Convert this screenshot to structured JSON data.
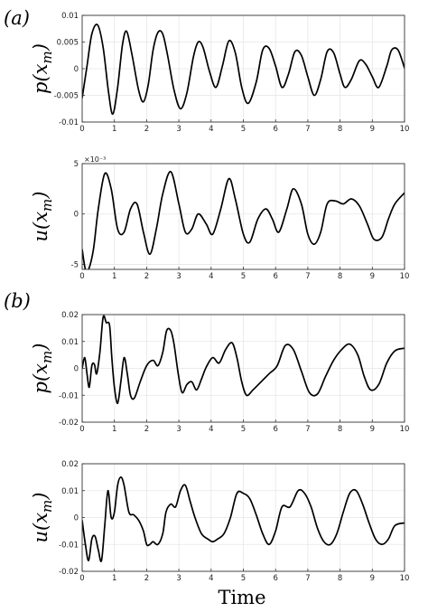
{
  "panel_labels": [
    "(a)",
    "(b)"
  ],
  "xlabel": "Time",
  "chart_data": [
    {
      "type": "line",
      "panel": "(a)",
      "ylabel": "p(x_m)",
      "ylabel_display": "p(x",
      "ylabel_sub": "m",
      "xlim": [
        0,
        10
      ],
      "ylim": [
        -0.01,
        0.01
      ],
      "xticks": [
        "0",
        "1",
        "2",
        "3",
        "4",
        "5",
        "6",
        "7",
        "8",
        "9",
        "10"
      ],
      "yticks": [
        {
          "v": 0.01,
          "label": "0.01"
        },
        {
          "v": 0.005,
          "label": "0.005"
        },
        {
          "v": 0,
          "label": "0"
        },
        {
          "v": -0.005,
          "label": "-0.005"
        },
        {
          "v": -0.01,
          "label": "-0.01"
        }
      ],
      "grid": true,
      "x": [
        0,
        0.15,
        0.3,
        0.48,
        0.65,
        0.82,
        0.95,
        1.1,
        1.25,
        1.38,
        1.55,
        1.75,
        1.9,
        2.05,
        2.2,
        2.35,
        2.5,
        2.65,
        2.85,
        3.05,
        3.25,
        3.45,
        3.6,
        3.75,
        3.95,
        4.15,
        4.35,
        4.55,
        4.75,
        4.95,
        5.15,
        5.4,
        5.6,
        5.8,
        6.0,
        6.2,
        6.4,
        6.6,
        6.8,
        7.0,
        7.2,
        7.4,
        7.6,
        7.8,
        8.0,
        8.15,
        8.35,
        8.6,
        8.8,
        9.0,
        9.2,
        9.45,
        9.6,
        9.8,
        10.0
      ],
      "y": [
        -0.0055,
        0.0005,
        0.0065,
        0.0082,
        0.004,
        -0.0045,
        -0.0085,
        -0.0035,
        0.0045,
        0.007,
        0.0025,
        -0.004,
        -0.0062,
        -0.003,
        0.0035,
        0.0068,
        0.0065,
        0.0025,
        -0.004,
        -0.0075,
        -0.0045,
        0.0022,
        0.005,
        0.004,
        -0.0005,
        -0.0035,
        0.0005,
        0.0052,
        0.003,
        -0.0035,
        -0.0065,
        -0.0025,
        0.0035,
        0.0038,
        0.0005,
        -0.0035,
        -0.001,
        0.0032,
        0.0025,
        -0.0015,
        -0.005,
        -0.002,
        0.0032,
        0.003,
        -0.001,
        -0.0035,
        -0.002,
        0.0015,
        0.0008,
        -0.0015,
        -0.0035,
        0.0005,
        0.0035,
        0.0035,
        0.0001
      ]
    },
    {
      "type": "line",
      "panel": "(a)",
      "ylabel": "u(x_m)",
      "ylabel_display": "u(x",
      "ylabel_sub": "m",
      "exponent_label": "×10⁻³",
      "xlim": [
        0,
        10
      ],
      "ylim": [
        -5.5,
        5
      ],
      "xticks": [
        "0",
        "1",
        "2",
        "3",
        "4",
        "5",
        "6",
        "7",
        "8",
        "9",
        "10"
      ],
      "yticks": [
        {
          "v": 5,
          "label": "5"
        },
        {
          "v": 0,
          "label": "0"
        },
        {
          "v": -5,
          "label": "-5"
        }
      ],
      "grid": true,
      "x": [
        0,
        0.1,
        0.2,
        0.35,
        0.5,
        0.7,
        0.9,
        1.1,
        1.3,
        1.5,
        1.7,
        1.9,
        2.1,
        2.3,
        2.5,
        2.75,
        3.0,
        3.2,
        3.4,
        3.6,
        3.85,
        4.05,
        4.3,
        4.55,
        4.75,
        5.0,
        5.2,
        5.45,
        5.7,
        5.9,
        6.1,
        6.35,
        6.55,
        6.8,
        7.0,
        7.2,
        7.4,
        7.6,
        7.85,
        8.1,
        8.35,
        8.6,
        8.85,
        9.05,
        9.3,
        9.5,
        9.7,
        10.0
      ],
      "y": [
        -3.5,
        -5.5,
        -5.5,
        -3.5,
        0.5,
        4.0,
        2.5,
        -1.5,
        -1.8,
        0.5,
        1.0,
        -1.8,
        -4.0,
        -1.5,
        2.0,
        4.2,
        1.0,
        -1.8,
        -1.5,
        0,
        -1.0,
        -2.0,
        0.5,
        3.5,
        1.5,
        -2.0,
        -2.8,
        -0.5,
        0.5,
        -0.5,
        -1.8,
        0.5,
        2.5,
        1.0,
        -2.0,
        -3.0,
        -1.8,
        1.0,
        1.3,
        1.0,
        1.5,
        0.8,
        -1.0,
        -2.5,
        -2.3,
        -0.5,
        1.0,
        2.1
      ]
    },
    {
      "type": "line",
      "panel": "(b)",
      "ylabel": "p(x_m)",
      "ylabel_display": "p(x",
      "ylabel_sub": "m",
      "xlim": [
        0,
        10
      ],
      "ylim": [
        -0.02,
        0.02
      ],
      "xticks": [
        "0",
        "1",
        "2",
        "3",
        "4",
        "5",
        "6",
        "7",
        "8",
        "9",
        "10"
      ],
      "yticks": [
        {
          "v": 0.02,
          "label": "0.02"
        },
        {
          "v": 0.01,
          "label": "0.01"
        },
        {
          "v": 0,
          "label": "0"
        },
        {
          "v": -0.01,
          "label": "-0.01"
        },
        {
          "v": -0.02,
          "label": "-0.02"
        }
      ],
      "grid": true,
      "x": [
        0,
        0.08,
        0.15,
        0.22,
        0.3,
        0.38,
        0.45,
        0.55,
        0.65,
        0.75,
        0.85,
        0.92,
        1.0,
        1.1,
        1.2,
        1.3,
        1.4,
        1.5,
        1.62,
        1.8,
        2.0,
        2.2,
        2.35,
        2.5,
        2.62,
        2.75,
        2.85,
        2.98,
        3.1,
        3.25,
        3.4,
        3.55,
        3.7,
        3.85,
        4.05,
        4.25,
        4.45,
        4.65,
        4.8,
        4.95,
        5.1,
        5.3,
        5.55,
        5.8,
        6.05,
        6.3,
        6.55,
        6.8,
        7.05,
        7.3,
        7.55,
        7.8,
        8.05,
        8.3,
        8.55,
        8.75,
        8.95,
        9.2,
        9.45,
        9.7,
        10.0
      ],
      "y": [
        0,
        0.004,
        -0.002,
        -0.007,
        0.001,
        0.0015,
        -0.002,
        0.006,
        0.019,
        0.017,
        0.016,
        0.004,
        -0.007,
        -0.013,
        -0.005,
        0.004,
        -0.002,
        -0.01,
        -0.011,
        -0.005,
        0.001,
        0.003,
        0.001,
        0.006,
        0.014,
        0.014,
        0.009,
        -0.002,
        -0.009,
        -0.006,
        -0.005,
        -0.008,
        -0.004,
        0.0005,
        0.004,
        0.002,
        0.007,
        0.0095,
        0.004,
        -0.005,
        -0.01,
        -0.008,
        -0.005,
        -0.002,
        0.001,
        0.0085,
        0.007,
        -0.001,
        -0.009,
        -0.0095,
        -0.003,
        0.003,
        0.007,
        0.009,
        0.005,
        -0.003,
        -0.008,
        -0.006,
        0.002,
        0.0065,
        0.0075
      ]
    },
    {
      "type": "line",
      "panel": "(b)",
      "ylabel": "u(x_m)",
      "ylabel_display": "u(x",
      "ylabel_sub": "m",
      "xlim": [
        0,
        10
      ],
      "ylim": [
        -0.02,
        0.02
      ],
      "xticks": [
        "0",
        "1",
        "2",
        "3",
        "4",
        "5",
        "6",
        "7",
        "8",
        "9",
        "10"
      ],
      "yticks": [
        {
          "v": 0.02,
          "label": "0.02"
        },
        {
          "v": 0.01,
          "label": "0.01"
        },
        {
          "v": 0,
          "label": "0"
        },
        {
          "v": -0.01,
          "label": "-0.01"
        },
        {
          "v": -0.02,
          "label": "-0.02"
        }
      ],
      "grid": true,
      "x": [
        0,
        0.1,
        0.2,
        0.3,
        0.4,
        0.5,
        0.6,
        0.7,
        0.8,
        0.9,
        1.0,
        1.1,
        1.2,
        1.3,
        1.45,
        1.6,
        1.75,
        1.9,
        2.0,
        2.1,
        2.2,
        2.35,
        2.5,
        2.6,
        2.75,
        2.9,
        3.05,
        3.2,
        3.35,
        3.5,
        3.7,
        3.9,
        4.05,
        4.2,
        4.4,
        4.6,
        4.8,
        5.0,
        5.2,
        5.4,
        5.6,
        5.8,
        6.0,
        6.2,
        6.45,
        6.7,
        6.9,
        7.1,
        7.3,
        7.5,
        7.7,
        7.9,
        8.1,
        8.3,
        8.5,
        8.7,
        8.9,
        9.1,
        9.3,
        9.5,
        9.7,
        10.0
      ],
      "y": [
        -0.001,
        -0.01,
        -0.016,
        -0.008,
        -0.007,
        -0.012,
        -0.016,
        -0.003,
        0.01,
        0.0,
        0.002,
        0.012,
        0.015,
        0.012,
        0.002,
        0.001,
        -0.001,
        -0.005,
        -0.01,
        -0.01,
        -0.009,
        -0.01,
        -0.006,
        0.002,
        0.005,
        0.004,
        0.01,
        0.012,
        0.006,
        0.0,
        -0.006,
        -0.008,
        -0.009,
        -0.008,
        -0.006,
        0.0,
        0.009,
        0.009,
        0.007,
        0.001,
        -0.006,
        -0.01,
        -0.005,
        0.004,
        0.004,
        0.01,
        0.009,
        0.004,
        -0.004,
        -0.009,
        -0.01,
        -0.006,
        0.002,
        0.009,
        0.01,
        0.005,
        -0.002,
        -0.008,
        -0.01,
        -0.008,
        -0.003,
        -0.002
      ]
    }
  ]
}
